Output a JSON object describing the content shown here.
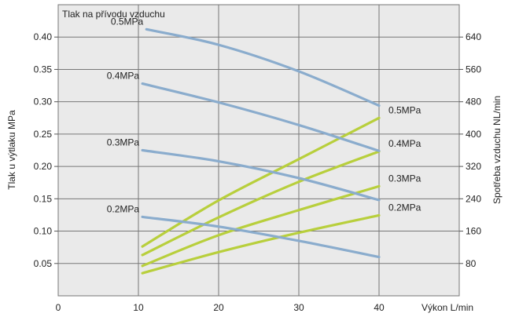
{
  "chart_data": {
    "type": "line",
    "title": "Tlak na přívodu vzduchu",
    "xlabel": "Výkon  L/min",
    "ylabel_left": "Tlak u výtlaku  MPa",
    "ylabel_right": "Spotřeba vzduchu  NL/min",
    "xlim": [
      0,
      50
    ],
    "ylim_left": [
      0,
      0.45
    ],
    "ylim_right": [
      0,
      720
    ],
    "x_ticks": [
      0,
      10,
      20,
      30,
      40
    ],
    "x_tick_labels": [
      "0",
      "10",
      "20",
      "30",
      "40"
    ],
    "y_left_ticks": [
      0.05,
      0.1,
      0.15,
      0.2,
      0.25,
      0.3,
      0.35,
      0.4
    ],
    "y_left_tick_labels": [
      "0.05",
      "0.10",
      "0.15",
      "0.20",
      "0.25",
      "0.30",
      "0.35",
      "0.40"
    ],
    "y_right_ticks": [
      80,
      160,
      240,
      320,
      400,
      480,
      560,
      640
    ],
    "y_right_tick_labels": [
      "80",
      "160",
      "240",
      "320",
      "400",
      "480",
      "560",
      "640"
    ],
    "grid": true,
    "colors": {
      "pressure": "#8aaccd",
      "consumption": "#b8cf3c",
      "plot_background": "#eaeaea",
      "grid": "#777777"
    },
    "pressure_series": [
      {
        "name": "0.5MPa",
        "x": [
          11,
          20,
          30,
          40
        ],
        "y": [
          0.412,
          0.388,
          0.347,
          0.294
        ]
      },
      {
        "name": "0.4MPa",
        "x": [
          10.5,
          20,
          30,
          40
        ],
        "y": [
          0.328,
          0.299,
          0.264,
          0.224
        ]
      },
      {
        "name": "0.3MPa",
        "x": [
          10.5,
          20,
          30,
          40
        ],
        "y": [
          0.225,
          0.208,
          0.182,
          0.148
        ]
      },
      {
        "name": "0.2MPa",
        "x": [
          10.5,
          20,
          30,
          40
        ],
        "y": [
          0.122,
          0.107,
          0.085,
          0.06
        ]
      }
    ],
    "consumption_series": [
      {
        "name": "0.5MPa",
        "x": [
          10.5,
          20,
          30,
          40
        ],
        "y": [
          122,
          236,
          338,
          440
        ]
      },
      {
        "name": "0.4MPa",
        "x": [
          10.5,
          20,
          30,
          40
        ],
        "y": [
          101,
          194,
          282,
          357
        ]
      },
      {
        "name": "0.3MPa",
        "x": [
          10.5,
          20,
          30,
          40
        ],
        "y": [
          74,
          150,
          212,
          271
        ]
      },
      {
        "name": "0.2MPa",
        "x": [
          10.5,
          20,
          30,
          40
        ],
        "y": [
          56,
          108,
          156,
          199
        ]
      }
    ]
  }
}
